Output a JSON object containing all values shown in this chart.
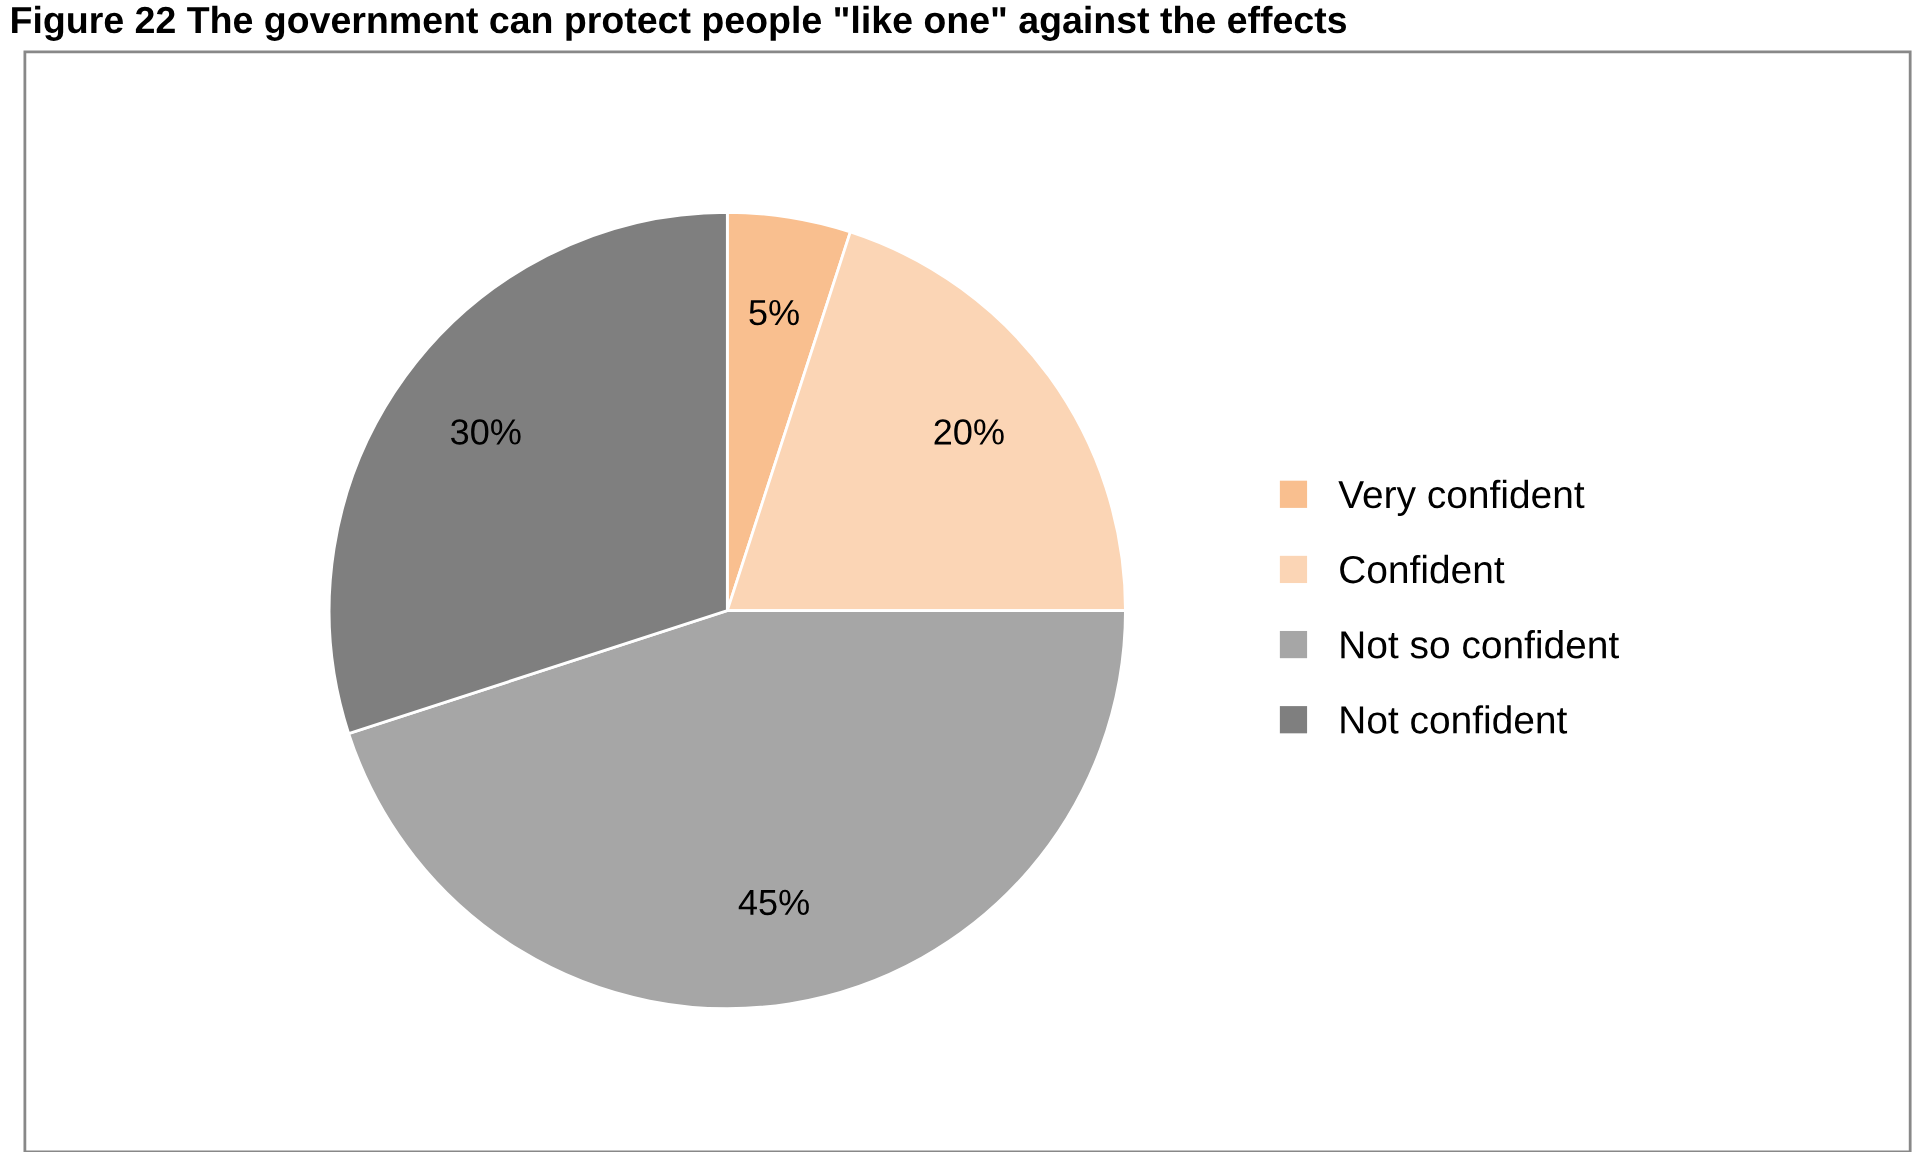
{
  "chart_data": {
    "type": "pie",
    "title": "Figure 22 The government can protect people \"like one\" against the effects",
    "categories": [
      "Very confident",
      "Confident",
      "Not so confident",
      "Not confident"
    ],
    "values": [
      5,
      20,
      45,
      30
    ],
    "value_labels": [
      "5%",
      "20%",
      "45%",
      "30%"
    ],
    "colors": [
      "#f9bf8f",
      "#fbd5b5",
      "#a6a6a6",
      "#7f7f7f"
    ],
    "legend": "right"
  }
}
